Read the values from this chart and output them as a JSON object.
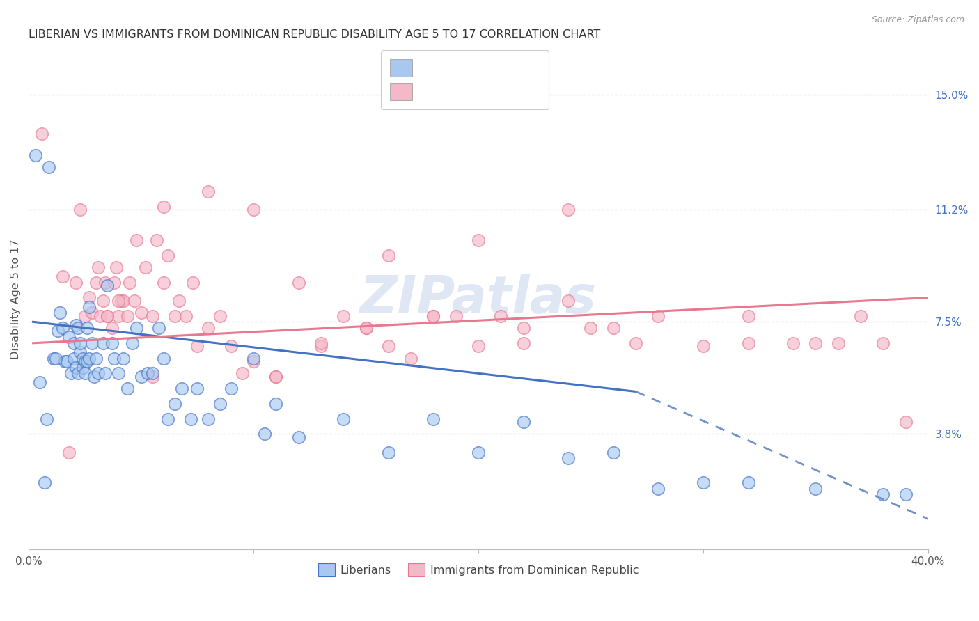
{
  "title": "LIBERIAN VS IMMIGRANTS FROM DOMINICAN REPUBLIC DISABILITY AGE 5 TO 17 CORRELATION CHART",
  "source": "Source: ZipAtlas.com",
  "ylabel": "Disability Age 5 to 17",
  "xlim": [
    0.0,
    0.4
  ],
  "ylim": [
    0.0,
    0.165
  ],
  "xtick_vals": [
    0.0,
    0.1,
    0.2,
    0.3,
    0.4
  ],
  "xtick_labels": [
    "0.0%",
    "",
    "",
    "",
    "40.0%"
  ],
  "right_ytick_vals": [
    0.038,
    0.075,
    0.112,
    0.15
  ],
  "right_ytick_labels": [
    "3.8%",
    "7.5%",
    "11.2%",
    "15.0%"
  ],
  "blue_dot_color": "#A8C8F0",
  "pink_dot_color": "#F5B8C8",
  "blue_line_color": "#4472C4",
  "pink_line_color": "#E87890",
  "watermark_color": "#C8D8EC",
  "blue_scatter_x": [
    0.003,
    0.007,
    0.009,
    0.011,
    0.013,
    0.014,
    0.015,
    0.016,
    0.017,
    0.018,
    0.019,
    0.02,
    0.02,
    0.021,
    0.021,
    0.022,
    0.022,
    0.023,
    0.023,
    0.024,
    0.024,
    0.025,
    0.025,
    0.026,
    0.026,
    0.027,
    0.027,
    0.028,
    0.029,
    0.03,
    0.031,
    0.033,
    0.034,
    0.035,
    0.037,
    0.038,
    0.04,
    0.042,
    0.044,
    0.046,
    0.048,
    0.05,
    0.053,
    0.055,
    0.058,
    0.06,
    0.062,
    0.065,
    0.068,
    0.072,
    0.075,
    0.08,
    0.085,
    0.09,
    0.1,
    0.105,
    0.11,
    0.12,
    0.14,
    0.16,
    0.18,
    0.2,
    0.22,
    0.24,
    0.26,
    0.28,
    0.3,
    0.32,
    0.35,
    0.38,
    0.39,
    0.005,
    0.008,
    0.012
  ],
  "blue_scatter_y": [
    0.13,
    0.022,
    0.126,
    0.063,
    0.072,
    0.078,
    0.073,
    0.062,
    0.062,
    0.07,
    0.058,
    0.063,
    0.068,
    0.074,
    0.06,
    0.058,
    0.073,
    0.065,
    0.068,
    0.06,
    0.063,
    0.062,
    0.058,
    0.073,
    0.062,
    0.063,
    0.08,
    0.068,
    0.057,
    0.063,
    0.058,
    0.068,
    0.058,
    0.087,
    0.068,
    0.063,
    0.058,
    0.063,
    0.053,
    0.068,
    0.073,
    0.057,
    0.058,
    0.058,
    0.073,
    0.063,
    0.043,
    0.048,
    0.053,
    0.043,
    0.053,
    0.043,
    0.048,
    0.053,
    0.063,
    0.038,
    0.048,
    0.037,
    0.043,
    0.032,
    0.043,
    0.032,
    0.042,
    0.03,
    0.032,
    0.02,
    0.022,
    0.022,
    0.02,
    0.018,
    0.018,
    0.055,
    0.043,
    0.063
  ],
  "pink_scatter_x": [
    0.006,
    0.015,
    0.021,
    0.025,
    0.027,
    0.028,
    0.03,
    0.031,
    0.032,
    0.033,
    0.034,
    0.035,
    0.037,
    0.038,
    0.039,
    0.04,
    0.041,
    0.042,
    0.044,
    0.045,
    0.047,
    0.048,
    0.05,
    0.052,
    0.055,
    0.057,
    0.06,
    0.062,
    0.065,
    0.067,
    0.07,
    0.073,
    0.075,
    0.08,
    0.085,
    0.09,
    0.095,
    0.1,
    0.11,
    0.12,
    0.13,
    0.14,
    0.15,
    0.16,
    0.17,
    0.18,
    0.19,
    0.2,
    0.21,
    0.22,
    0.24,
    0.26,
    0.28,
    0.3,
    0.32,
    0.34,
    0.36,
    0.38,
    0.27,
    0.25,
    0.22,
    0.18,
    0.15,
    0.13,
    0.11,
    0.16,
    0.2,
    0.24,
    0.32,
    0.35,
    0.37,
    0.39,
    0.06,
    0.08,
    0.1,
    0.035,
    0.04,
    0.055,
    0.018,
    0.023
  ],
  "pink_scatter_y": [
    0.137,
    0.09,
    0.088,
    0.077,
    0.083,
    0.078,
    0.088,
    0.093,
    0.077,
    0.082,
    0.088,
    0.077,
    0.073,
    0.088,
    0.093,
    0.077,
    0.082,
    0.082,
    0.077,
    0.088,
    0.082,
    0.102,
    0.078,
    0.093,
    0.077,
    0.102,
    0.088,
    0.097,
    0.077,
    0.082,
    0.077,
    0.088,
    0.067,
    0.073,
    0.077,
    0.067,
    0.058,
    0.062,
    0.057,
    0.088,
    0.067,
    0.077,
    0.073,
    0.067,
    0.063,
    0.077,
    0.077,
    0.067,
    0.077,
    0.073,
    0.082,
    0.073,
    0.077,
    0.067,
    0.077,
    0.068,
    0.068,
    0.068,
    0.068,
    0.073,
    0.068,
    0.077,
    0.073,
    0.068,
    0.057,
    0.097,
    0.102,
    0.112,
    0.068,
    0.068,
    0.077,
    0.042,
    0.113,
    0.118,
    0.112,
    0.077,
    0.082,
    0.057,
    0.032,
    0.112
  ],
  "blue_line_x_solid_start": 0.002,
  "blue_line_x_solid_end": 0.27,
  "blue_line_x_dash_end": 0.4,
  "blue_line_y_at_solid_start": 0.075,
  "blue_line_y_at_solid_end": 0.052,
  "blue_line_y_at_dash_end": 0.01,
  "pink_line_x_start": 0.002,
  "pink_line_x_end": 0.4,
  "pink_line_y_start": 0.068,
  "pink_line_y_end": 0.083
}
